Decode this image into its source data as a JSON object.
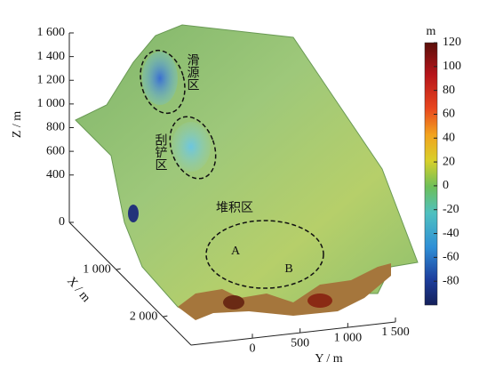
{
  "chart_data": {
    "type": "surface3d",
    "zlabel": "Z / m",
    "xlabel": "X / m",
    "ylabel": "Y / m",
    "colorbar_label": "m",
    "zlim": [
      0,
      1600
    ],
    "zticks": [
      0,
      400,
      600,
      800,
      {
        "value": 1000,
        "label": "1 000"
      },
      {
        "value": 1200,
        "label": "1 200"
      },
      {
        "value": 1400,
        "label": "1 400"
      },
      {
        "value": 1600,
        "label": "1 600"
      }
    ],
    "xlim": [
      0,
      2600
    ],
    "xticks": [
      {
        "value": 1000,
        "label": "1 000"
      },
      {
        "value": 2000,
        "label": "2 000"
      }
    ],
    "ylim": [
      0,
      1500
    ],
    "yticks": [
      0,
      500,
      {
        "value": 1000,
        "label": "1 000"
      },
      {
        "value": 1500,
        "label": "1 500"
      }
    ],
    "clim": [
      -100,
      120
    ],
    "cticks": [
      -80,
      -60,
      -40,
      -20,
      0,
      20,
      40,
      60,
      80,
      100,
      120
    ],
    "annotations": [
      "滑源区",
      "刮铲区",
      "堆积区",
      "A",
      "B"
    ]
  }
}
